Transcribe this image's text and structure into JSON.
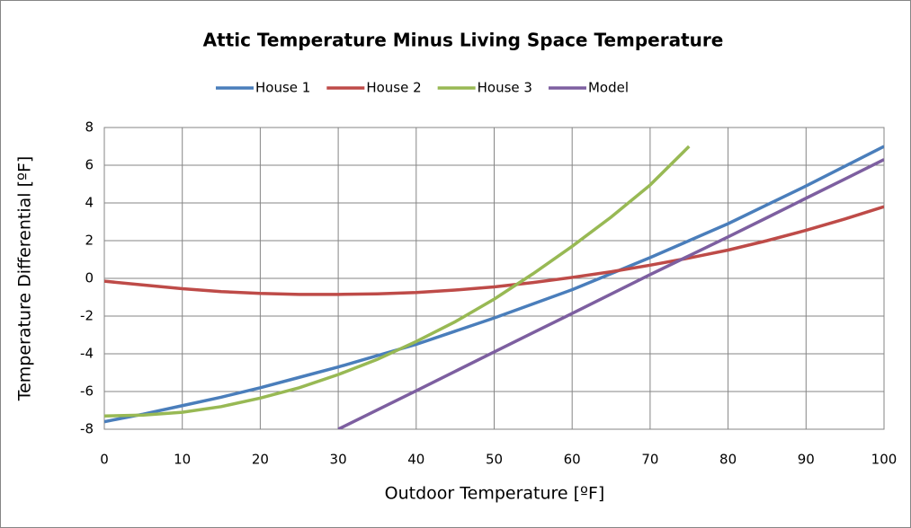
{
  "chart_data": {
    "type": "line",
    "title": "Attic Temperature Minus Living Space Temperature",
    "x_label": "Outdoor Temperature [ºF]",
    "y_label": "Temperature Differential [ºF]",
    "x": [
      0,
      5,
      10,
      15,
      20,
      25,
      30,
      35,
      40,
      45,
      50,
      55,
      60,
      65,
      70,
      75,
      80,
      85,
      90,
      95,
      100
    ],
    "series": [
      {
        "name": "House 1",
        "color": "#4a7ebb",
        "values": [
          -7.6,
          -7.2,
          -6.75,
          -6.3,
          -5.8,
          -5.25,
          -4.7,
          -4.1,
          -3.5,
          -2.8,
          -2.1,
          -1.35,
          -0.6,
          0.25,
          1.1,
          2.0,
          2.9,
          3.9,
          4.9,
          5.95,
          7.0
        ]
      },
      {
        "name": "House 2",
        "color": "#be4b48",
        "values": [
          -0.15,
          -0.35,
          -0.55,
          -0.7,
          -0.8,
          -0.85,
          -0.85,
          -0.82,
          -0.75,
          -0.62,
          -0.45,
          -0.22,
          0.05,
          0.35,
          0.7,
          1.08,
          1.5,
          2.0,
          2.55,
          3.15,
          3.8
        ]
      },
      {
        "name": "House 3",
        "color": "#98b954",
        "values": [
          -7.3,
          -7.25,
          -7.1,
          -6.8,
          -6.35,
          -5.8,
          -5.1,
          -4.3,
          -3.35,
          -2.3,
          -1.1,
          0.25,
          1.7,
          3.25,
          4.95,
          7.0,
          null,
          null,
          null,
          null,
          null
        ]
      },
      {
        "name": "Model",
        "color": "#7d5fa0",
        "values": [
          null,
          null,
          null,
          null,
          null,
          null,
          -8,
          -6.98,
          -5.96,
          -4.93,
          -3.9,
          -2.88,
          -1.86,
          -0.83,
          0.2,
          1.2,
          2.2,
          3.22,
          4.25,
          5.27,
          6.3
        ]
      }
    ],
    "xlim": [
      0,
      100
    ],
    "xticks": [
      0,
      10,
      20,
      30,
      40,
      50,
      60,
      70,
      80,
      90,
      100
    ],
    "ylim": [
      -8,
      8
    ],
    "yticks": [
      -8,
      -6,
      -4,
      -2,
      0,
      2,
      4,
      6,
      8
    ],
    "grid": true,
    "legend": "top"
  }
}
